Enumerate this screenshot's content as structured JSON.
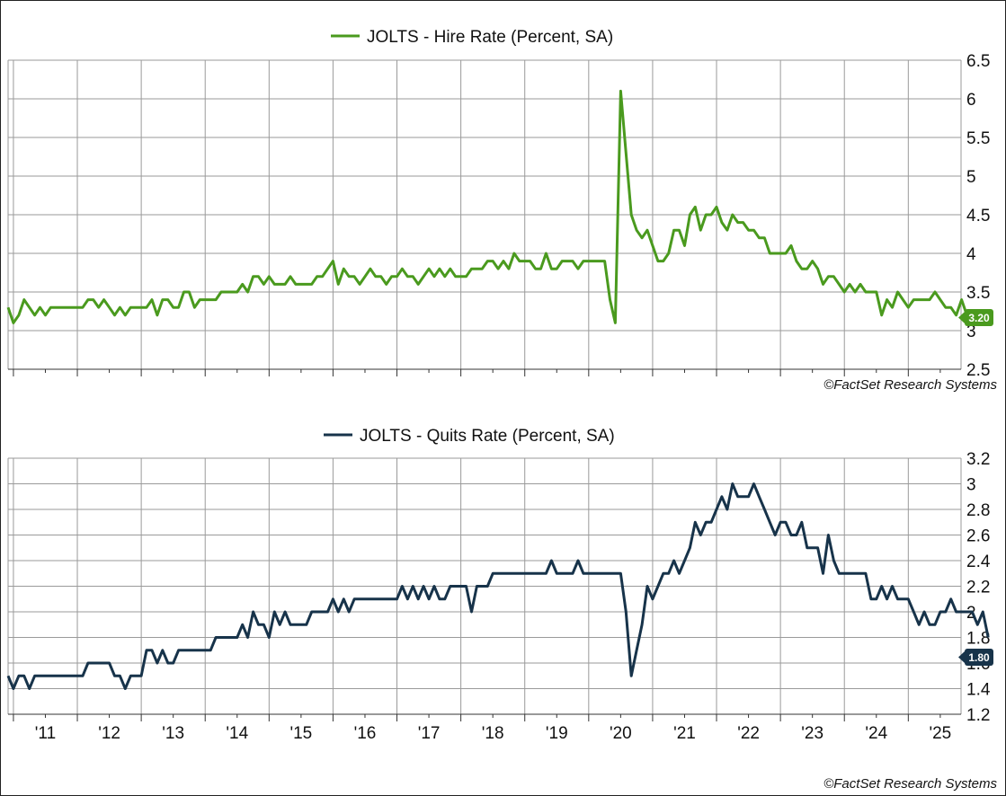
{
  "chart_data": [
    {
      "type": "line",
      "legend_position": "top-center",
      "grid": true,
      "series": [
        {
          "name": "JOLTS - Hire Rate (Percent, SA)",
          "color": "#4a9a1e"
        }
      ],
      "ylim": [
        2.5,
        6.5
      ],
      "yticks": [
        "2.5",
        "3",
        "3.5",
        "4",
        "4.5",
        "5",
        "5.5",
        "6",
        "6.5"
      ],
      "last_value_label": "3.20",
      "credit": "©FactSet Research Systems",
      "x_start": "2010-12",
      "values": [
        3.3,
        3.1,
        3.2,
        3.4,
        3.3,
        3.2,
        3.3,
        3.2,
        3.3,
        3.3,
        3.3,
        3.3,
        3.3,
        3.3,
        3.3,
        3.4,
        3.4,
        3.3,
        3.4,
        3.3,
        3.2,
        3.3,
        3.2,
        3.3,
        3.3,
        3.3,
        3.3,
        3.4,
        3.2,
        3.4,
        3.4,
        3.3,
        3.3,
        3.5,
        3.5,
        3.3,
        3.4,
        3.4,
        3.4,
        3.4,
        3.5,
        3.5,
        3.5,
        3.5,
        3.6,
        3.5,
        3.7,
        3.7,
        3.6,
        3.7,
        3.6,
        3.6,
        3.6,
        3.7,
        3.6,
        3.6,
        3.6,
        3.6,
        3.7,
        3.7,
        3.8,
        3.9,
        3.6,
        3.8,
        3.7,
        3.7,
        3.6,
        3.7,
        3.8,
        3.7,
        3.7,
        3.6,
        3.7,
        3.7,
        3.8,
        3.7,
        3.7,
        3.6,
        3.7,
        3.8,
        3.7,
        3.8,
        3.7,
        3.8,
        3.7,
        3.7,
        3.7,
        3.8,
        3.8,
        3.8,
        3.9,
        3.9,
        3.8,
        3.9,
        3.8,
        4.0,
        3.9,
        3.9,
        3.9,
        3.8,
        3.8,
        4.0,
        3.8,
        3.8,
        3.9,
        3.9,
        3.9,
        3.8,
        3.9,
        3.9,
        3.9,
        3.9,
        3.9,
        3.4,
        3.1,
        6.1,
        5.3,
        4.5,
        4.3,
        4.2,
        4.3,
        4.1,
        3.9,
        3.9,
        4.0,
        4.3,
        4.3,
        4.1,
        4.5,
        4.6,
        4.3,
        4.5,
        4.5,
        4.6,
        4.4,
        4.3,
        4.5,
        4.4,
        4.4,
        4.3,
        4.3,
        4.2,
        4.2,
        4.0,
        4.0,
        4.0,
        4.0,
        4.1,
        3.9,
        3.8,
        3.8,
        3.9,
        3.8,
        3.6,
        3.7,
        3.7,
        3.6,
        3.5,
        3.6,
        3.5,
        3.6,
        3.5,
        3.5,
        3.5,
        3.2,
        3.4,
        3.3,
        3.5,
        3.4,
        3.3,
        3.4,
        3.4,
        3.4,
        3.4,
        3.5,
        3.4,
        3.3,
        3.3,
        3.2,
        3.4,
        3.2
      ]
    },
    {
      "type": "line",
      "legend_position": "top-center",
      "grid": true,
      "series": [
        {
          "name": "JOLTS - Quits Rate (Percent, SA)",
          "color": "#17334a"
        }
      ],
      "ylim": [
        1.2,
        3.2
      ],
      "yticks": [
        "1.2",
        "1.4",
        "1.6",
        "1.8",
        "2",
        "2.2",
        "2.4",
        "2.6",
        "2.8",
        "3",
        "3.2"
      ],
      "last_value_label": "1.80",
      "credit": "©FactSet Research Systems",
      "x_start": "2010-12",
      "xticks": [
        "'11",
        "'12",
        "'13",
        "'14",
        "'15",
        "'16",
        "'17",
        "'18",
        "'19",
        "'20",
        "'21",
        "'22",
        "'23",
        "'24",
        "'25"
      ],
      "values": [
        1.5,
        1.4,
        1.5,
        1.5,
        1.4,
        1.5,
        1.5,
        1.5,
        1.5,
        1.5,
        1.5,
        1.5,
        1.5,
        1.5,
        1.5,
        1.6,
        1.6,
        1.6,
        1.6,
        1.6,
        1.5,
        1.5,
        1.4,
        1.5,
        1.5,
        1.5,
        1.7,
        1.7,
        1.6,
        1.7,
        1.6,
        1.6,
        1.7,
        1.7,
        1.7,
        1.7,
        1.7,
        1.7,
        1.7,
        1.8,
        1.8,
        1.8,
        1.8,
        1.8,
        1.9,
        1.8,
        2.0,
        1.9,
        1.9,
        1.8,
        2.0,
        1.9,
        2.0,
        1.9,
        1.9,
        1.9,
        1.9,
        2.0,
        2.0,
        2.0,
        2.0,
        2.1,
        2.0,
        2.1,
        2.0,
        2.1,
        2.1,
        2.1,
        2.1,
        2.1,
        2.1,
        2.1,
        2.1,
        2.1,
        2.2,
        2.1,
        2.2,
        2.1,
        2.2,
        2.1,
        2.2,
        2.1,
        2.1,
        2.2,
        2.2,
        2.2,
        2.2,
        2.0,
        2.2,
        2.2,
        2.2,
        2.3,
        2.3,
        2.3,
        2.3,
        2.3,
        2.3,
        2.3,
        2.3,
        2.3,
        2.3,
        2.3,
        2.4,
        2.3,
        2.3,
        2.3,
        2.3,
        2.4,
        2.3,
        2.3,
        2.3,
        2.3,
        2.3,
        2.3,
        2.3,
        2.3,
        2.0,
        1.5,
        1.7,
        1.9,
        2.2,
        2.1,
        2.2,
        2.3,
        2.3,
        2.4,
        2.3,
        2.4,
        2.5,
        2.7,
        2.6,
        2.7,
        2.7,
        2.8,
        2.9,
        2.8,
        3.0,
        2.9,
        2.9,
        2.9,
        3.0,
        2.9,
        2.8,
        2.7,
        2.6,
        2.7,
        2.7,
        2.6,
        2.6,
        2.7,
        2.5,
        2.5,
        2.5,
        2.3,
        2.6,
        2.4,
        2.3,
        2.3,
        2.3,
        2.3,
        2.3,
        2.3,
        2.1,
        2.1,
        2.2,
        2.1,
        2.2,
        2.1,
        2.1,
        2.1,
        2.0,
        1.9,
        2.0,
        1.9,
        1.9,
        2.0,
        2.0,
        2.1,
        2.0,
        2.0,
        2.0,
        2.0,
        1.9,
        2.0,
        1.8
      ]
    }
  ]
}
